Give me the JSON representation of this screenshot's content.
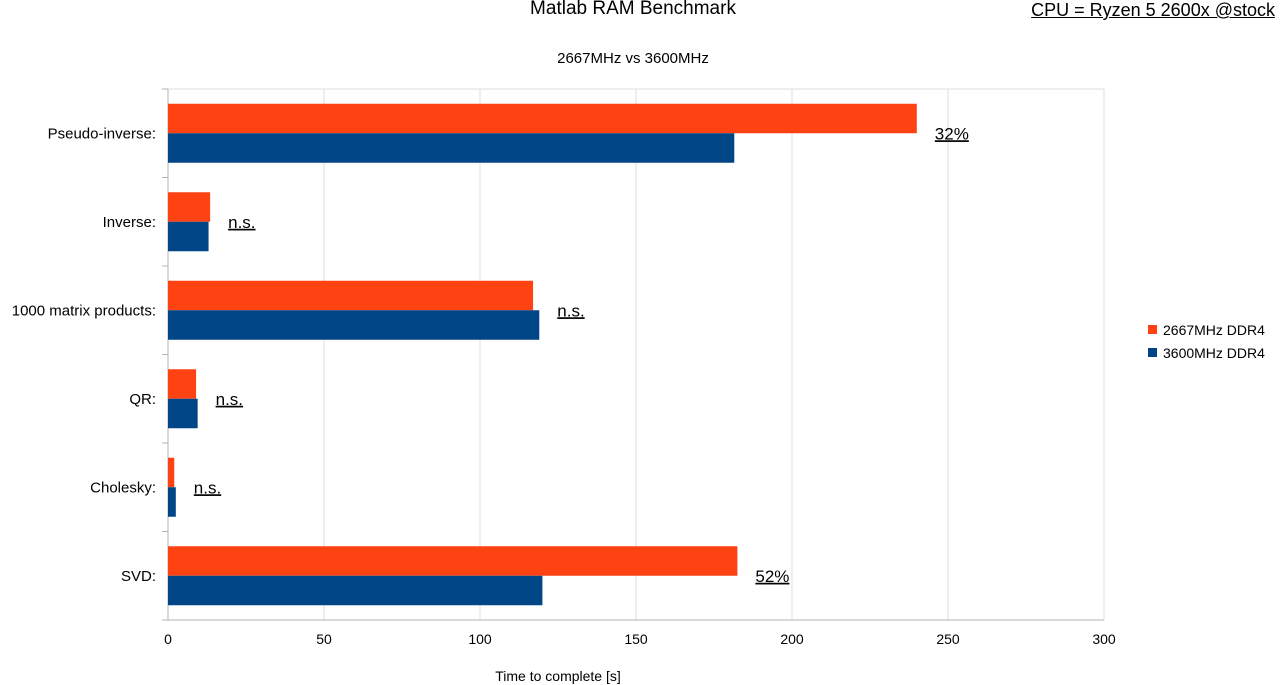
{
  "title": "Matlab RAM Benchmark",
  "subtitle": "2667MHz vs 3600MHz",
  "note": "CPU = Ryzen 5 2600x @stock",
  "chart_data": {
    "type": "bar",
    "orientation": "horizontal",
    "categories": [
      "Pseudo-inverse:",
      "Inverse:",
      "1000 matrix products:",
      "QR:",
      "Cholesky:",
      "SVD:"
    ],
    "series": [
      {
        "name": "2667MHz DDR4",
        "color": "#ff4211",
        "values": [
          240,
          13.5,
          117,
          9,
          2,
          182.5
        ]
      },
      {
        "name": "3600MHz DDR4",
        "color": "#004586",
        "values": [
          181.5,
          13,
          119,
          9.5,
          2.5,
          120
        ]
      }
    ],
    "annotations": [
      "32%",
      "n.s.",
      "n.s.",
      "n.s.",
      "n.s.",
      "52%"
    ],
    "xlabel": "Time to complete [s]",
    "ylabel": "",
    "xlim": [
      0,
      300
    ],
    "xticks": [
      0,
      50,
      100,
      150,
      200,
      250,
      300
    ],
    "grid": true,
    "legend": "right"
  }
}
